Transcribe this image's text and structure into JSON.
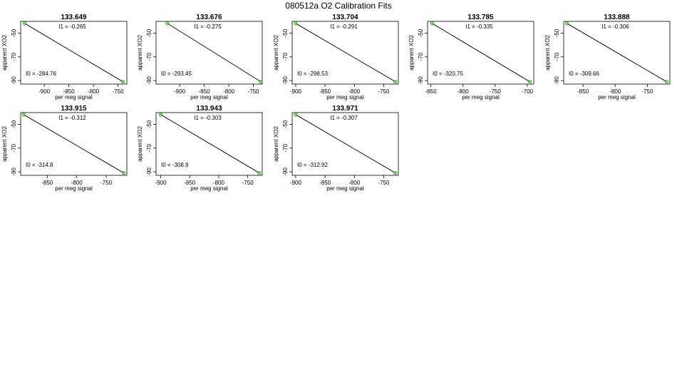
{
  "title": "080512a   O2 Calibration Fits",
  "colors": {
    "line": "#000000",
    "point": "#22aa22",
    "point_fill": "#66cc44"
  },
  "chart_data": [
    {
      "type": "scatter",
      "title": "133.649",
      "xlabel": "per meg signal",
      "ylabel": "apparent XO2",
      "xticks": [
        -900,
        -850,
        -800,
        -750
      ],
      "yticks": [
        -50,
        -70,
        -90
      ],
      "xlim": [
        -948,
        -732
      ],
      "ylim": [
        -93,
        -40
      ],
      "I1_label": "I1 =  -0.265",
      "I0_label": "I0 =  -284.76",
      "points": [
        {
          "x": -940,
          "y": -41.7
        },
        {
          "x": -740,
          "y": -91.0
        }
      ],
      "fit": {
        "slope": -0.265,
        "intercept": -284.76
      }
    },
    {
      "type": "scatter",
      "title": "133.676",
      "xlabel": "per meg signal",
      "ylabel": "apparent XO2",
      "xticks": [
        -900,
        -850,
        -800,
        -750
      ],
      "yticks": [
        -50,
        -70,
        -90
      ],
      "xlim": [
        -948,
        -732
      ],
      "ylim": [
        -93,
        -40
      ],
      "I1_label": "I1 =  -0.275",
      "I0_label": "I0 =  -293.45",
      "points": [
        {
          "x": -925,
          "y": -41.7
        },
        {
          "x": -735,
          "y": -91.0
        }
      ],
      "fit": {
        "slope": -0.275,
        "intercept": -293.45
      }
    },
    {
      "type": "scatter",
      "title": "133.704",
      "xlabel": "per meg signal",
      "ylabel": "apparent XO2",
      "xticks": [
        -900,
        -850,
        -800,
        -750
      ],
      "yticks": [
        -50,
        -70,
        -90
      ],
      "xlim": [
        -906,
        -725
      ],
      "ylim": [
        -93,
        -40
      ],
      "I1_label": "I1 =  -0.291",
      "I0_label": "I0 =  -298.53",
      "points": [
        {
          "x": -900,
          "y": -41.7
        },
        {
          "x": -730,
          "y": -91.0
        }
      ],
      "fit": {
        "slope": -0.291,
        "intercept": -298.53
      }
    },
    {
      "type": "scatter",
      "title": "133.785",
      "xlabel": "per meg signal",
      "ylabel": "apparent XO2",
      "xticks": [
        -850,
        -800,
        -750,
        -700
      ],
      "yticks": [
        -50,
        -70,
        -90
      ],
      "xlim": [
        -855,
        -690
      ],
      "ylim": [
        -93,
        -40
      ],
      "I1_label": "I1 =  -0.335",
      "I0_label": "I0 =  -320.75",
      "points": [
        {
          "x": -848,
          "y": -41.7
        },
        {
          "x": -696,
          "y": -91.0
        }
      ],
      "fit": {
        "slope": -0.335,
        "intercept": -320.75
      }
    },
    {
      "type": "scatter",
      "title": "133.888",
      "xlabel": "per meg signal",
      "ylabel": "apparent XO2",
      "xticks": [
        -850,
        -800,
        -750
      ],
      "yticks": [
        -50,
        -70,
        -90
      ],
      "xlim": [
        -880,
        -715
      ],
      "ylim": [
        -93,
        -40
      ],
      "I1_label": "I1 =  -0.306",
      "I0_label": "I0 =  -309.66",
      "points": [
        {
          "x": -875,
          "y": -41.7
        },
        {
          "x": -720,
          "y": -91.0
        }
      ],
      "fit": {
        "slope": -0.306,
        "intercept": -309.66
      }
    },
    {
      "type": "scatter",
      "title": "133.915",
      "xlabel": "per meg signal",
      "ylabel": "apparent XO2",
      "xticks": [
        -850,
        -800,
        -750
      ],
      "yticks": [
        -50,
        -70,
        -90
      ],
      "xlim": [
        -895,
        -715
      ],
      "ylim": [
        -93,
        -40
      ],
      "I1_label": "I1 =  -0.312",
      "I0_label": "I0 =  -314.8",
      "points": [
        {
          "x": -890,
          "y": -41.7
        },
        {
          "x": -720,
          "y": -91.0
        }
      ],
      "fit": {
        "slope": -0.312,
        "intercept": -314.8
      }
    },
    {
      "type": "scatter",
      "title": "133.943",
      "xlabel": "per meg signal",
      "ylabel": "apparent XO2",
      "xticks": [
        -900,
        -850,
        -800,
        -750
      ],
      "yticks": [
        -50,
        -70,
        -90
      ],
      "xlim": [
        -908,
        -725
      ],
      "ylim": [
        -93,
        -40
      ],
      "I1_label": "I1 =  -0.303",
      "I0_label": "I0 =  -308.9",
      "points": [
        {
          "x": -900,
          "y": -41.7
        },
        {
          "x": -730,
          "y": -91.0
        }
      ],
      "fit": {
        "slope": -0.303,
        "intercept": -308.9
      }
    },
    {
      "type": "scatter",
      "title": "133.971",
      "xlabel": "per meg signal",
      "ylabel": "apparent XO2",
      "xticks": [
        -900,
        -850,
        -800,
        -750
      ],
      "yticks": [
        -50,
        -70,
        -90
      ],
      "xlim": [
        -906,
        -725
      ],
      "ylim": [
        -93,
        -40
      ],
      "I1_label": "I1 =  -0.307",
      "I0_label": "I0 =  -312.92",
      "points": [
        {
          "x": -900,
          "y": -41.7
        },
        {
          "x": -730,
          "y": -91.0
        }
      ],
      "fit": {
        "slope": -0.307,
        "intercept": -312.92
      }
    }
  ]
}
